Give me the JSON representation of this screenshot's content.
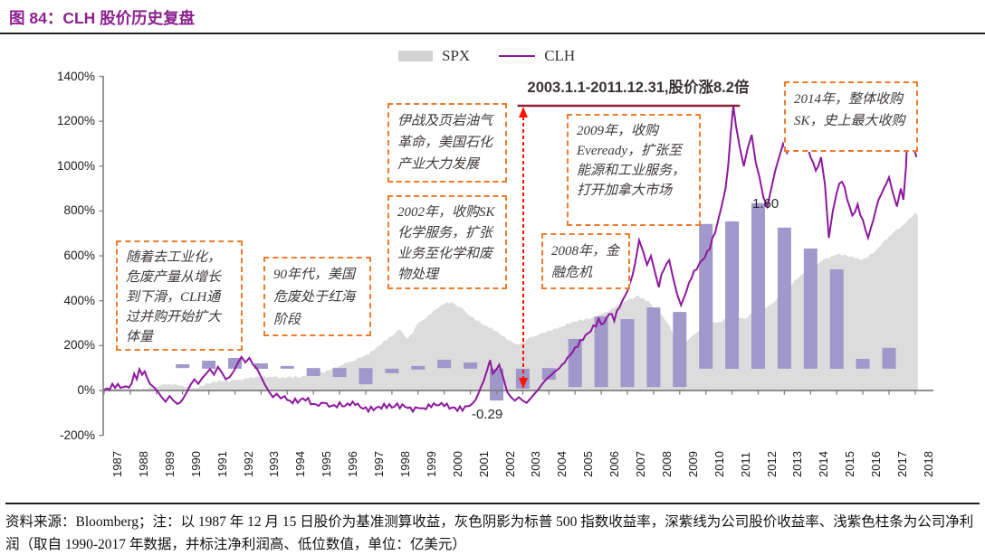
{
  "title": "图 84：CLH 股价历史复盘",
  "footer": "资料来源：Bloomberg；注：以 1987 年 12 月 15 日股价为基准测算收益，灰色阴影为标普 500 指数收益率，深紫线为公司股价收益率、浅紫色柱条为公司净利润（取自 1990-2017 年数据，并标注净利润高、低位数值，单位：亿美元）",
  "colors": {
    "title": "#8c2190",
    "clh_line": "#8e189e",
    "spx_fill": "#dcdcdc",
    "bar_fill": "#9c92c8",
    "annotation_border": "#ee7c2c",
    "arrow_red": "#fe1400",
    "range_line": "#8f2033",
    "axis": "#7f7f7f"
  },
  "chart_data": {
    "type": "line+area+bar",
    "title": "图 84：CLH 股价历史复盘",
    "legend": [
      {
        "label": "SPX",
        "type": "area"
      },
      {
        "label": "CLH",
        "type": "line"
      }
    ],
    "y_axis": {
      "min": -200,
      "max": 1400,
      "step": 200,
      "format": "percent",
      "tick_labels": [
        "1400%",
        "1200%",
        "1000%",
        "800%",
        "600%",
        "400%",
        "200%",
        "0%",
        "-200%"
      ]
    },
    "x_axis": {
      "start": 1987,
      "end": 2018,
      "tick_labels": [
        "1987",
        "1988",
        "1989",
        "1990",
        "1991",
        "1992",
        "1993",
        "1994",
        "1995",
        "1996",
        "1997",
        "1998",
        "1999",
        "2000",
        "2001",
        "2002",
        "2003",
        "2004",
        "2005",
        "2006",
        "2007",
        "2008",
        "2009",
        "2010",
        "2011",
        "2012",
        "2013",
        "2014",
        "2015",
        "2016",
        "2017",
        "2018"
      ]
    },
    "range_note": "2003.1.1-2011.12.31,股价涨8.2倍",
    "range_note_span_years": [
      2002.8,
      2011.3
    ],
    "bar_value_labels": {
      "high": "1.60",
      "low": "-0.29"
    },
    "series": [
      {
        "name": "SPX",
        "type": "area",
        "points": [
          [
            1987.0,
            0
          ],
          [
            1988.3,
            8
          ],
          [
            1988.7,
            12
          ],
          [
            1989.0,
            18
          ],
          [
            1989.5,
            28
          ],
          [
            1990.0,
            22
          ],
          [
            1990.5,
            12
          ],
          [
            1991.0,
            30
          ],
          [
            1991.5,
            42
          ],
          [
            1992.0,
            48
          ],
          [
            1992.5,
            52
          ],
          [
            1993.0,
            58
          ],
          [
            1993.5,
            62
          ],
          [
            1994.0,
            60
          ],
          [
            1994.5,
            58
          ],
          [
            1995.0,
            70
          ],
          [
            1995.5,
            90
          ],
          [
            1996.0,
            110
          ],
          [
            1996.5,
            130
          ],
          [
            1997.0,
            160
          ],
          [
            1997.5,
            200
          ],
          [
            1998.0,
            240
          ],
          [
            1998.3,
            270
          ],
          [
            1998.6,
            230
          ],
          [
            1999.0,
            300
          ],
          [
            1999.5,
            340
          ],
          [
            2000.0,
            385
          ],
          [
            2000.3,
            395
          ],
          [
            2000.7,
            365
          ],
          [
            2001.0,
            330
          ],
          [
            2001.5,
            290
          ],
          [
            2002.0,
            265
          ],
          [
            2002.5,
            225
          ],
          [
            2002.8,
            205
          ],
          [
            2003.0,
            215
          ],
          [
            2003.5,
            245
          ],
          [
            2004.0,
            270
          ],
          [
            2004.5,
            285
          ],
          [
            2005.0,
            305
          ],
          [
            2005.5,
            320
          ],
          [
            2006.0,
            340
          ],
          [
            2006.5,
            365
          ],
          [
            2007.0,
            400
          ],
          [
            2007.4,
            425
          ],
          [
            2007.8,
            400
          ],
          [
            2008.0,
            370
          ],
          [
            2008.5,
            305
          ],
          [
            2008.8,
            245
          ],
          [
            2009.1,
            195
          ],
          [
            2009.4,
            235
          ],
          [
            2009.8,
            275
          ],
          [
            2010.0,
            295
          ],
          [
            2010.5,
            305
          ],
          [
            2011.0,
            335
          ],
          [
            2011.5,
            320
          ],
          [
            2012.0,
            355
          ],
          [
            2012.5,
            385
          ],
          [
            2013.0,
            440
          ],
          [
            2013.5,
            495
          ],
          [
            2014.0,
            545
          ],
          [
            2014.5,
            585
          ],
          [
            2015.0,
            605
          ],
          [
            2015.5,
            595
          ],
          [
            2016.0,
            585
          ],
          [
            2016.5,
            625
          ],
          [
            2017.0,
            685
          ],
          [
            2017.5,
            735
          ],
          [
            2018.0,
            795
          ],
          [
            2018.1,
            780
          ]
        ]
      },
      {
        "name": "CLH",
        "type": "line",
        "points": [
          [
            1987.0,
            2
          ],
          [
            1988.05,
            30
          ],
          [
            1988.15,
            75
          ],
          [
            1988.25,
            50
          ],
          [
            1988.35,
            95
          ],
          [
            1988.45,
            70
          ],
          [
            1988.55,
            85
          ],
          [
            1988.65,
            55
          ],
          [
            1988.75,
            30
          ],
          [
            1988.9,
            15
          ],
          [
            1989.05,
            -5
          ],
          [
            1989.2,
            -30
          ],
          [
            1989.35,
            -50
          ],
          [
            1989.5,
            -25
          ],
          [
            1989.65,
            -45
          ],
          [
            1989.8,
            -60
          ],
          [
            1990.0,
            -40
          ],
          [
            1990.15,
            -10
          ],
          [
            1990.3,
            25
          ],
          [
            1990.45,
            50
          ],
          [
            1990.6,
            30
          ],
          [
            1990.75,
            55
          ],
          [
            1990.9,
            75
          ],
          [
            1991.05,
            95
          ],
          [
            1991.2,
            70
          ],
          [
            1991.35,
            105
          ],
          [
            1991.5,
            80
          ],
          [
            1991.65,
            50
          ],
          [
            1991.8,
            60
          ],
          [
            1991.95,
            85
          ],
          [
            1992.1,
            120
          ],
          [
            1992.25,
            150
          ],
          [
            1992.4,
            125
          ],
          [
            1992.55,
            145
          ],
          [
            1992.7,
            115
          ],
          [
            1992.85,
            95
          ],
          [
            1993.0,
            60
          ],
          [
            1993.15,
            25
          ],
          [
            1993.3,
            -5
          ],
          [
            1993.45,
            -30
          ],
          [
            1993.6,
            -15
          ],
          [
            1993.75,
            -35
          ],
          [
            1993.9,
            -25
          ],
          [
            1994.1,
            -45
          ],
          [
            1994.4,
            -55
          ],
          [
            1994.7,
            -45
          ],
          [
            1995.0,
            -60
          ],
          [
            1995.4,
            -55
          ],
          [
            1995.8,
            -65
          ],
          [
            1996.2,
            -70
          ],
          [
            1996.6,
            -65
          ],
          [
            1997.0,
            -75
          ],
          [
            1997.5,
            -72
          ],
          [
            1998.0,
            -76
          ],
          [
            1998.5,
            -72
          ],
          [
            1999.0,
            -78
          ],
          [
            1999.5,
            -74
          ],
          [
            2000.0,
            -70
          ],
          [
            2000.4,
            -76
          ],
          [
            2000.8,
            -70
          ],
          [
            2001.1,
            -55
          ],
          [
            2001.3,
            -15
          ],
          [
            2001.5,
            40
          ],
          [
            2001.65,
            95
          ],
          [
            2001.75,
            135
          ],
          [
            2001.85,
            75
          ],
          [
            2002.0,
            95
          ],
          [
            2002.1,
            115
          ],
          [
            2002.25,
            60
          ],
          [
            2002.4,
            -5
          ],
          [
            2002.55,
            -30
          ],
          [
            2002.7,
            -45
          ],
          [
            2002.85,
            -30
          ],
          [
            2003.0,
            -45
          ],
          [
            2003.15,
            -55
          ],
          [
            2003.3,
            -35
          ],
          [
            2003.45,
            -15
          ],
          [
            2003.6,
            5
          ],
          [
            2003.75,
            30
          ],
          [
            2003.9,
            50
          ],
          [
            2004.1,
            70
          ],
          [
            2004.3,
            90
          ],
          [
            2004.5,
            115
          ],
          [
            2004.7,
            145
          ],
          [
            2004.9,
            170
          ],
          [
            2005.1,
            195
          ],
          [
            2005.3,
            225
          ],
          [
            2005.5,
            255
          ],
          [
            2005.7,
            290
          ],
          [
            2005.9,
            320
          ],
          [
            2006.1,
            300
          ],
          [
            2006.3,
            340
          ],
          [
            2006.5,
            310
          ],
          [
            2006.7,
            370
          ],
          [
            2006.9,
            420
          ],
          [
            2007.1,
            480
          ],
          [
            2007.3,
            570
          ],
          [
            2007.45,
            670
          ],
          [
            2007.6,
            620
          ],
          [
            2007.75,
            560
          ],
          [
            2007.9,
            600
          ],
          [
            2008.05,
            530
          ],
          [
            2008.2,
            460
          ],
          [
            2008.4,
            540
          ],
          [
            2008.6,
            580
          ],
          [
            2008.75,
            500
          ],
          [
            2008.9,
            430
          ],
          [
            2009.05,
            380
          ],
          [
            2009.25,
            440
          ],
          [
            2009.45,
            500
          ],
          [
            2009.65,
            540
          ],
          [
            2009.85,
            580
          ],
          [
            2010.05,
            620
          ],
          [
            2010.25,
            680
          ],
          [
            2010.45,
            750
          ],
          [
            2010.6,
            820
          ],
          [
            2010.75,
            900
          ],
          [
            2010.85,
            1000
          ],
          [
            2010.95,
            1150
          ],
          [
            2011.05,
            1270
          ],
          [
            2011.15,
            1180
          ],
          [
            2011.3,
            1080
          ],
          [
            2011.45,
            1000
          ],
          [
            2011.6,
            1080
          ],
          [
            2011.75,
            1140
          ],
          [
            2011.9,
            1020
          ],
          [
            2012.05,
            950
          ],
          [
            2012.2,
            860
          ],
          [
            2012.35,
            820
          ],
          [
            2012.5,
            900
          ],
          [
            2012.65,
            980
          ],
          [
            2012.8,
            1040
          ],
          [
            2012.95,
            1100
          ],
          [
            2013.1,
            1060
          ],
          [
            2013.3,
            1120
          ],
          [
            2013.5,
            1080
          ],
          [
            2013.7,
            1150
          ],
          [
            2013.85,
            1100
          ],
          [
            2014.0,
            1040
          ],
          [
            2014.2,
            980
          ],
          [
            2014.4,
            1040
          ],
          [
            2014.55,
            920
          ],
          [
            2014.7,
            680
          ],
          [
            2014.85,
            800
          ],
          [
            2015.0,
            880
          ],
          [
            2015.2,
            930
          ],
          [
            2015.4,
            850
          ],
          [
            2015.6,
            780
          ],
          [
            2015.8,
            830
          ],
          [
            2016.0,
            760
          ],
          [
            2016.2,
            680
          ],
          [
            2016.4,
            760
          ],
          [
            2016.6,
            850
          ],
          [
            2016.8,
            900
          ],
          [
            2017.0,
            950
          ],
          [
            2017.15,
            880
          ],
          [
            2017.3,
            820
          ],
          [
            2017.45,
            900
          ],
          [
            2017.55,
            850
          ],
          [
            2017.65,
            1000
          ],
          [
            2017.75,
            1300
          ],
          [
            2017.85,
            1180
          ],
          [
            2017.95,
            1080
          ],
          [
            2018.05,
            1040
          ]
        ]
      },
      {
        "name": "净利润",
        "type": "bar",
        "bars": [
          {
            "year": 1990,
            "from": 100,
            "to": 117
          },
          {
            "year": 1991,
            "from": 97,
            "to": 133
          },
          {
            "year": 1992,
            "from": 97,
            "to": 145
          },
          {
            "year": 1993,
            "from": 97,
            "to": 121
          },
          {
            "year": 1994,
            "from": 97,
            "to": 109
          },
          {
            "year": 1995,
            "from": 65,
            "to": 100
          },
          {
            "year": 1996,
            "from": 60,
            "to": 100
          },
          {
            "year": 1997,
            "from": 28,
            "to": 100
          },
          {
            "year": 1998,
            "from": 77,
            "to": 97
          },
          {
            "year": 1999,
            "from": 93,
            "to": 109
          },
          {
            "year": 2000,
            "from": 100,
            "to": 137
          },
          {
            "year": 2001,
            "from": 97,
            "to": 125
          },
          {
            "year": 2002,
            "from": -45,
            "to": 97,
            "value_label": "-0.29"
          },
          {
            "year": 2003,
            "from": 8,
            "to": 97
          },
          {
            "year": 2004,
            "from": 48,
            "to": 100
          },
          {
            "year": 2005,
            "from": 15,
            "to": 230
          },
          {
            "year": 2006,
            "from": 15,
            "to": 330
          },
          {
            "year": 2007,
            "from": 15,
            "to": 318
          },
          {
            "year": 2008,
            "from": 15,
            "to": 370
          },
          {
            "year": 2009,
            "from": 15,
            "to": 350
          },
          {
            "year": 2010,
            "from": 97,
            "to": 742
          },
          {
            "year": 2011,
            "from": 97,
            "to": 754
          },
          {
            "year": 2012,
            "from": 97,
            "to": 835,
            "value_label": "1.60"
          },
          {
            "year": 2013,
            "from": 97,
            "to": 726
          },
          {
            "year": 2014,
            "from": 97,
            "to": 633
          },
          {
            "year": 2015,
            "from": 97,
            "to": 540
          },
          {
            "year": 2016,
            "from": 97,
            "to": 141
          },
          {
            "year": 2017,
            "from": 97,
            "to": 190
          }
        ]
      }
    ],
    "annotations": [
      {
        "text": "随着去工业化，危废产量从增长到下滑，CLH通过并购开始扩大体量"
      },
      {
        "text": "90年代，美国危废处于红海阶段"
      },
      {
        "text": "伊战及页岩油气革命，美国石化产业大力发展"
      },
      {
        "text": "2002年，收购SK化学服务，扩张业务至化学和废物处理"
      },
      {
        "text": "2009年，收购Eveready，扩张至能源和工业服务，打开加拿大市场"
      },
      {
        "text": "2008年，金融危机"
      },
      {
        "text": "2014年，整体收购SK，史上最大收购"
      }
    ]
  }
}
